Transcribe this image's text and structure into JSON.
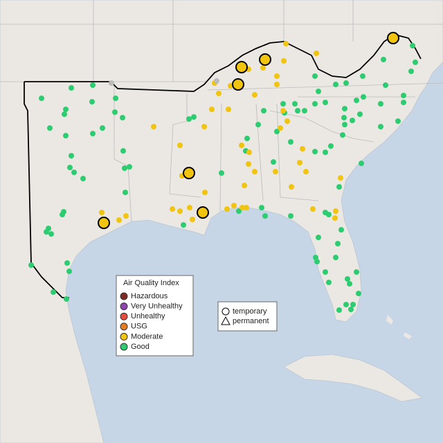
{
  "legend": {
    "title": "Air Quality Index",
    "items": [
      {
        "label": "Hazardous",
        "color": "#7e2a22"
      },
      {
        "label": "Very Unhealthy",
        "color": "#8e44ad"
      },
      {
        "label": "Unhealthy",
        "color": "#e74c3c"
      },
      {
        "label": "USG",
        "color": "#e67e22"
      },
      {
        "label": "Moderate",
        "color": "#f1c40f"
      },
      {
        "label": "Good",
        "color": "#2ecc71"
      }
    ]
  },
  "shape_legend": {
    "items": [
      "temporary",
      "permanent"
    ]
  }
}
